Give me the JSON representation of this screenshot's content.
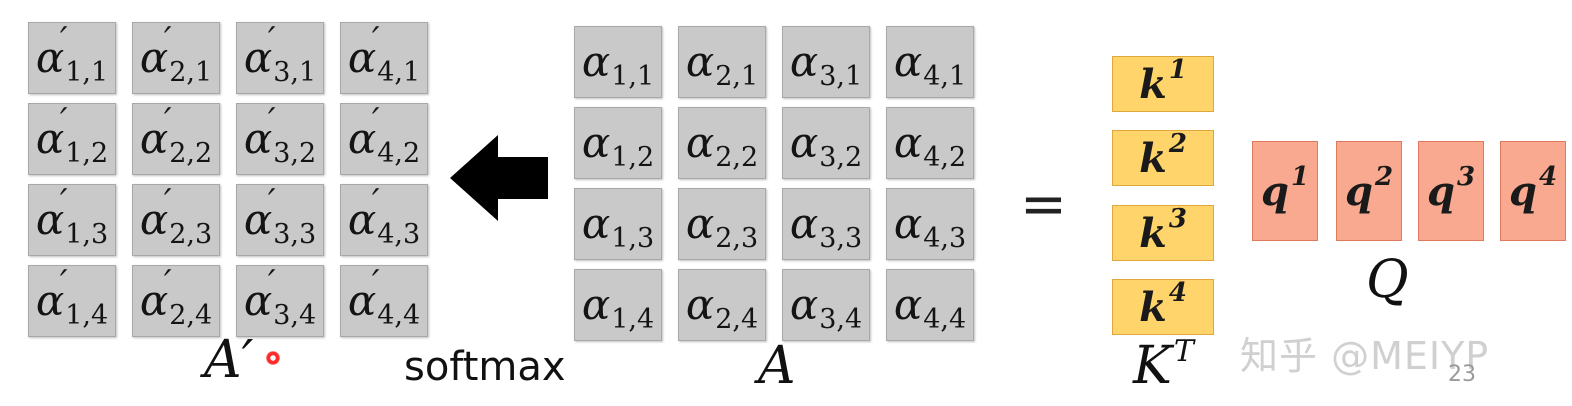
{
  "matrix_aprime": {
    "label": "A",
    "label_prime": "′",
    "symbol": "α",
    "prime": "′",
    "cells": [
      [
        "1,1",
        "2,1",
        "3,1",
        "4,1"
      ],
      [
        "1,2",
        "2,2",
        "3,2",
        "4,2"
      ],
      [
        "1,3",
        "2,3",
        "3,3",
        "4,3"
      ],
      [
        "1,4",
        "2,4",
        "3,4",
        "4,4"
      ]
    ]
  },
  "matrix_a": {
    "label": "A",
    "symbol": "α",
    "cells": [
      [
        "1,1",
        "2,1",
        "3,1",
        "4,1"
      ],
      [
        "1,2",
        "2,2",
        "3,2",
        "4,2"
      ],
      [
        "1,3",
        "2,3",
        "3,3",
        "4,3"
      ],
      [
        "1,4",
        "2,4",
        "3,4",
        "4,4"
      ]
    ]
  },
  "operation": {
    "label": "softmax"
  },
  "equals": "=",
  "keys": {
    "label": "K",
    "label_sup": "T",
    "items": [
      {
        "base": "k",
        "sup": "1"
      },
      {
        "base": "k",
        "sup": "2"
      },
      {
        "base": "k",
        "sup": "3"
      },
      {
        "base": "k",
        "sup": "4"
      }
    ],
    "color": "#ffd46b"
  },
  "queries": {
    "label": "Q",
    "items": [
      {
        "base": "q",
        "sup": "1"
      },
      {
        "base": "q",
        "sup": "2"
      },
      {
        "base": "q",
        "sup": "3"
      },
      {
        "base": "q",
        "sup": "4"
      }
    ],
    "color": "#f9a98f"
  },
  "watermark": "知乎 @MEIYP",
  "page_number": "23"
}
